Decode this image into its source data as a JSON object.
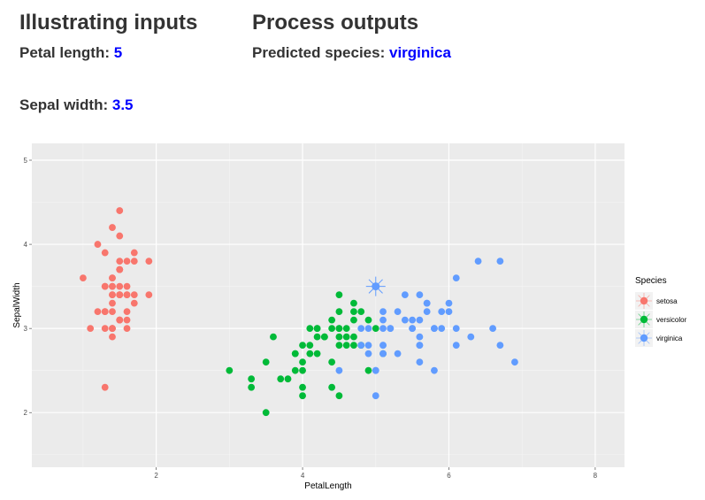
{
  "inputs": {
    "title": "Illustrating inputs",
    "petal_label": "Petal length:",
    "petal_value": "5",
    "sepal_label": "Sepal width:",
    "sepal_value": "3.5"
  },
  "outputs": {
    "title": "Process outputs",
    "pred_label": "Predicted species:",
    "pred_value": "virginica"
  },
  "chart_data": {
    "type": "scatter",
    "xlabel": "PetalLength",
    "ylabel": "SepalWidth",
    "xlim": [
      0.3,
      8.4
    ],
    "ylim": [
      1.35,
      5.2
    ],
    "xticks": [
      2,
      4,
      6,
      8
    ],
    "yticks": [
      2,
      3,
      4,
      5
    ],
    "grid": true,
    "legend_position": "right",
    "legend_title": "Species",
    "highlight": {
      "x": 5,
      "y": 3.5,
      "series": "virginica"
    },
    "series": [
      {
        "name": "setosa",
        "color": "#F8766D",
        "points": [
          [
            1.4,
            3.5
          ],
          [
            1.4,
            3.0
          ],
          [
            1.3,
            3.2
          ],
          [
            1.5,
            3.1
          ],
          [
            1.4,
            3.6
          ],
          [
            1.7,
            3.9
          ],
          [
            1.4,
            3.4
          ],
          [
            1.5,
            3.4
          ],
          [
            1.4,
            2.9
          ],
          [
            1.5,
            3.1
          ],
          [
            1.5,
            3.7
          ],
          [
            1.6,
            3.4
          ],
          [
            1.4,
            3.0
          ],
          [
            1.1,
            3.0
          ],
          [
            1.2,
            4.0
          ],
          [
            1.5,
            4.4
          ],
          [
            1.3,
            3.9
          ],
          [
            1.4,
            3.5
          ],
          [
            1.7,
            3.8
          ],
          [
            1.5,
            3.8
          ],
          [
            1.7,
            3.4
          ],
          [
            1.5,
            3.7
          ],
          [
            1.0,
            3.6
          ],
          [
            1.7,
            3.3
          ],
          [
            1.9,
            3.4
          ],
          [
            1.6,
            3.0
          ],
          [
            1.6,
            3.4
          ],
          [
            1.5,
            3.5
          ],
          [
            1.4,
            3.4
          ],
          [
            1.6,
            3.2
          ],
          [
            1.6,
            3.1
          ],
          [
            1.5,
            3.4
          ],
          [
            1.5,
            4.1
          ],
          [
            1.4,
            4.2
          ],
          [
            1.5,
            3.1
          ],
          [
            1.2,
            3.2
          ],
          [
            1.3,
            3.5
          ],
          [
            1.4,
            3.6
          ],
          [
            1.3,
            3.0
          ],
          [
            1.5,
            3.4
          ],
          [
            1.3,
            3.5
          ],
          [
            1.3,
            2.3
          ],
          [
            1.3,
            3.2
          ],
          [
            1.6,
            3.5
          ],
          [
            1.9,
            3.8
          ],
          [
            1.4,
            3.0
          ],
          [
            1.6,
            3.8
          ],
          [
            1.4,
            3.2
          ],
          [
            1.5,
            3.7
          ],
          [
            1.4,
            3.3
          ]
        ]
      },
      {
        "name": "versicolor",
        "color": "#00BA38",
        "points": [
          [
            4.7,
            3.2
          ],
          [
            4.5,
            3.2
          ],
          [
            4.9,
            3.1
          ],
          [
            4.0,
            2.3
          ],
          [
            4.6,
            2.8
          ],
          [
            4.5,
            2.8
          ],
          [
            4.7,
            3.3
          ],
          [
            3.3,
            2.4
          ],
          [
            4.6,
            2.9
          ],
          [
            3.9,
            2.7
          ],
          [
            3.5,
            2.0
          ],
          [
            4.2,
            3.0
          ],
          [
            4.0,
            2.2
          ],
          [
            4.7,
            2.9
          ],
          [
            3.6,
            2.9
          ],
          [
            4.4,
            3.1
          ],
          [
            4.5,
            3.0
          ],
          [
            4.1,
            2.7
          ],
          [
            4.5,
            2.2
          ],
          [
            3.9,
            2.5
          ],
          [
            4.8,
            3.2
          ],
          [
            4.0,
            2.8
          ],
          [
            4.9,
            2.5
          ],
          [
            4.7,
            2.8
          ],
          [
            4.3,
            2.9
          ],
          [
            4.4,
            3.0
          ],
          [
            4.8,
            2.8
          ],
          [
            5.0,
            3.0
          ],
          [
            4.5,
            2.9
          ],
          [
            3.5,
            2.6
          ],
          [
            3.8,
            2.4
          ],
          [
            3.7,
            2.4
          ],
          [
            3.9,
            2.7
          ],
          [
            5.1,
            2.7
          ],
          [
            4.5,
            3.0
          ],
          [
            4.5,
            3.4
          ],
          [
            4.7,
            3.1
          ],
          [
            4.4,
            2.3
          ],
          [
            4.1,
            3.0
          ],
          [
            4.0,
            2.5
          ],
          [
            4.4,
            2.6
          ],
          [
            4.6,
            3.0
          ],
          [
            4.0,
            2.6
          ],
          [
            3.3,
            2.3
          ],
          [
            4.2,
            2.7
          ],
          [
            4.2,
            3.0
          ],
          [
            4.2,
            2.9
          ],
          [
            4.3,
            2.9
          ],
          [
            3.0,
            2.5
          ],
          [
            4.1,
            2.8
          ]
        ]
      },
      {
        "name": "virginica",
        "color": "#619CFF",
        "points": [
          [
            6.0,
            3.3
          ],
          [
            5.1,
            2.7
          ],
          [
            5.9,
            3.0
          ],
          [
            5.6,
            2.9
          ],
          [
            5.8,
            3.0
          ],
          [
            6.6,
            3.0
          ],
          [
            4.5,
            2.5
          ],
          [
            6.3,
            2.9
          ],
          [
            5.8,
            2.5
          ],
          [
            6.1,
            3.6
          ],
          [
            5.1,
            3.2
          ],
          [
            5.3,
            2.7
          ],
          [
            5.5,
            3.0
          ],
          [
            5.0,
            2.5
          ],
          [
            5.1,
            2.8
          ],
          [
            5.3,
            3.2
          ],
          [
            5.5,
            3.0
          ],
          [
            6.7,
            3.8
          ],
          [
            6.9,
            2.6
          ],
          [
            5.0,
            2.2
          ],
          [
            5.7,
            3.2
          ],
          [
            4.9,
            2.8
          ],
          [
            6.7,
            2.8
          ],
          [
            4.9,
            2.7
          ],
          [
            5.7,
            3.3
          ],
          [
            6.0,
            3.2
          ],
          [
            4.8,
            2.8
          ],
          [
            4.9,
            3.0
          ],
          [
            5.6,
            2.8
          ],
          [
            5.8,
            3.0
          ],
          [
            6.1,
            2.8
          ],
          [
            6.4,
            3.8
          ],
          [
            5.6,
            2.8
          ],
          [
            5.1,
            2.8
          ],
          [
            5.6,
            2.6
          ],
          [
            6.1,
            3.0
          ],
          [
            5.6,
            3.4
          ],
          [
            5.5,
            3.1
          ],
          [
            4.8,
            3.0
          ],
          [
            5.4,
            3.1
          ],
          [
            5.6,
            3.1
          ],
          [
            5.1,
            3.1
          ],
          [
            5.1,
            2.7
          ],
          [
            5.9,
            3.2
          ],
          [
            5.7,
            3.3
          ],
          [
            5.2,
            3.0
          ],
          [
            5.0,
            2.5
          ],
          [
            5.2,
            3.0
          ],
          [
            5.4,
            3.4
          ],
          [
            5.1,
            3.0
          ]
        ]
      }
    ]
  }
}
